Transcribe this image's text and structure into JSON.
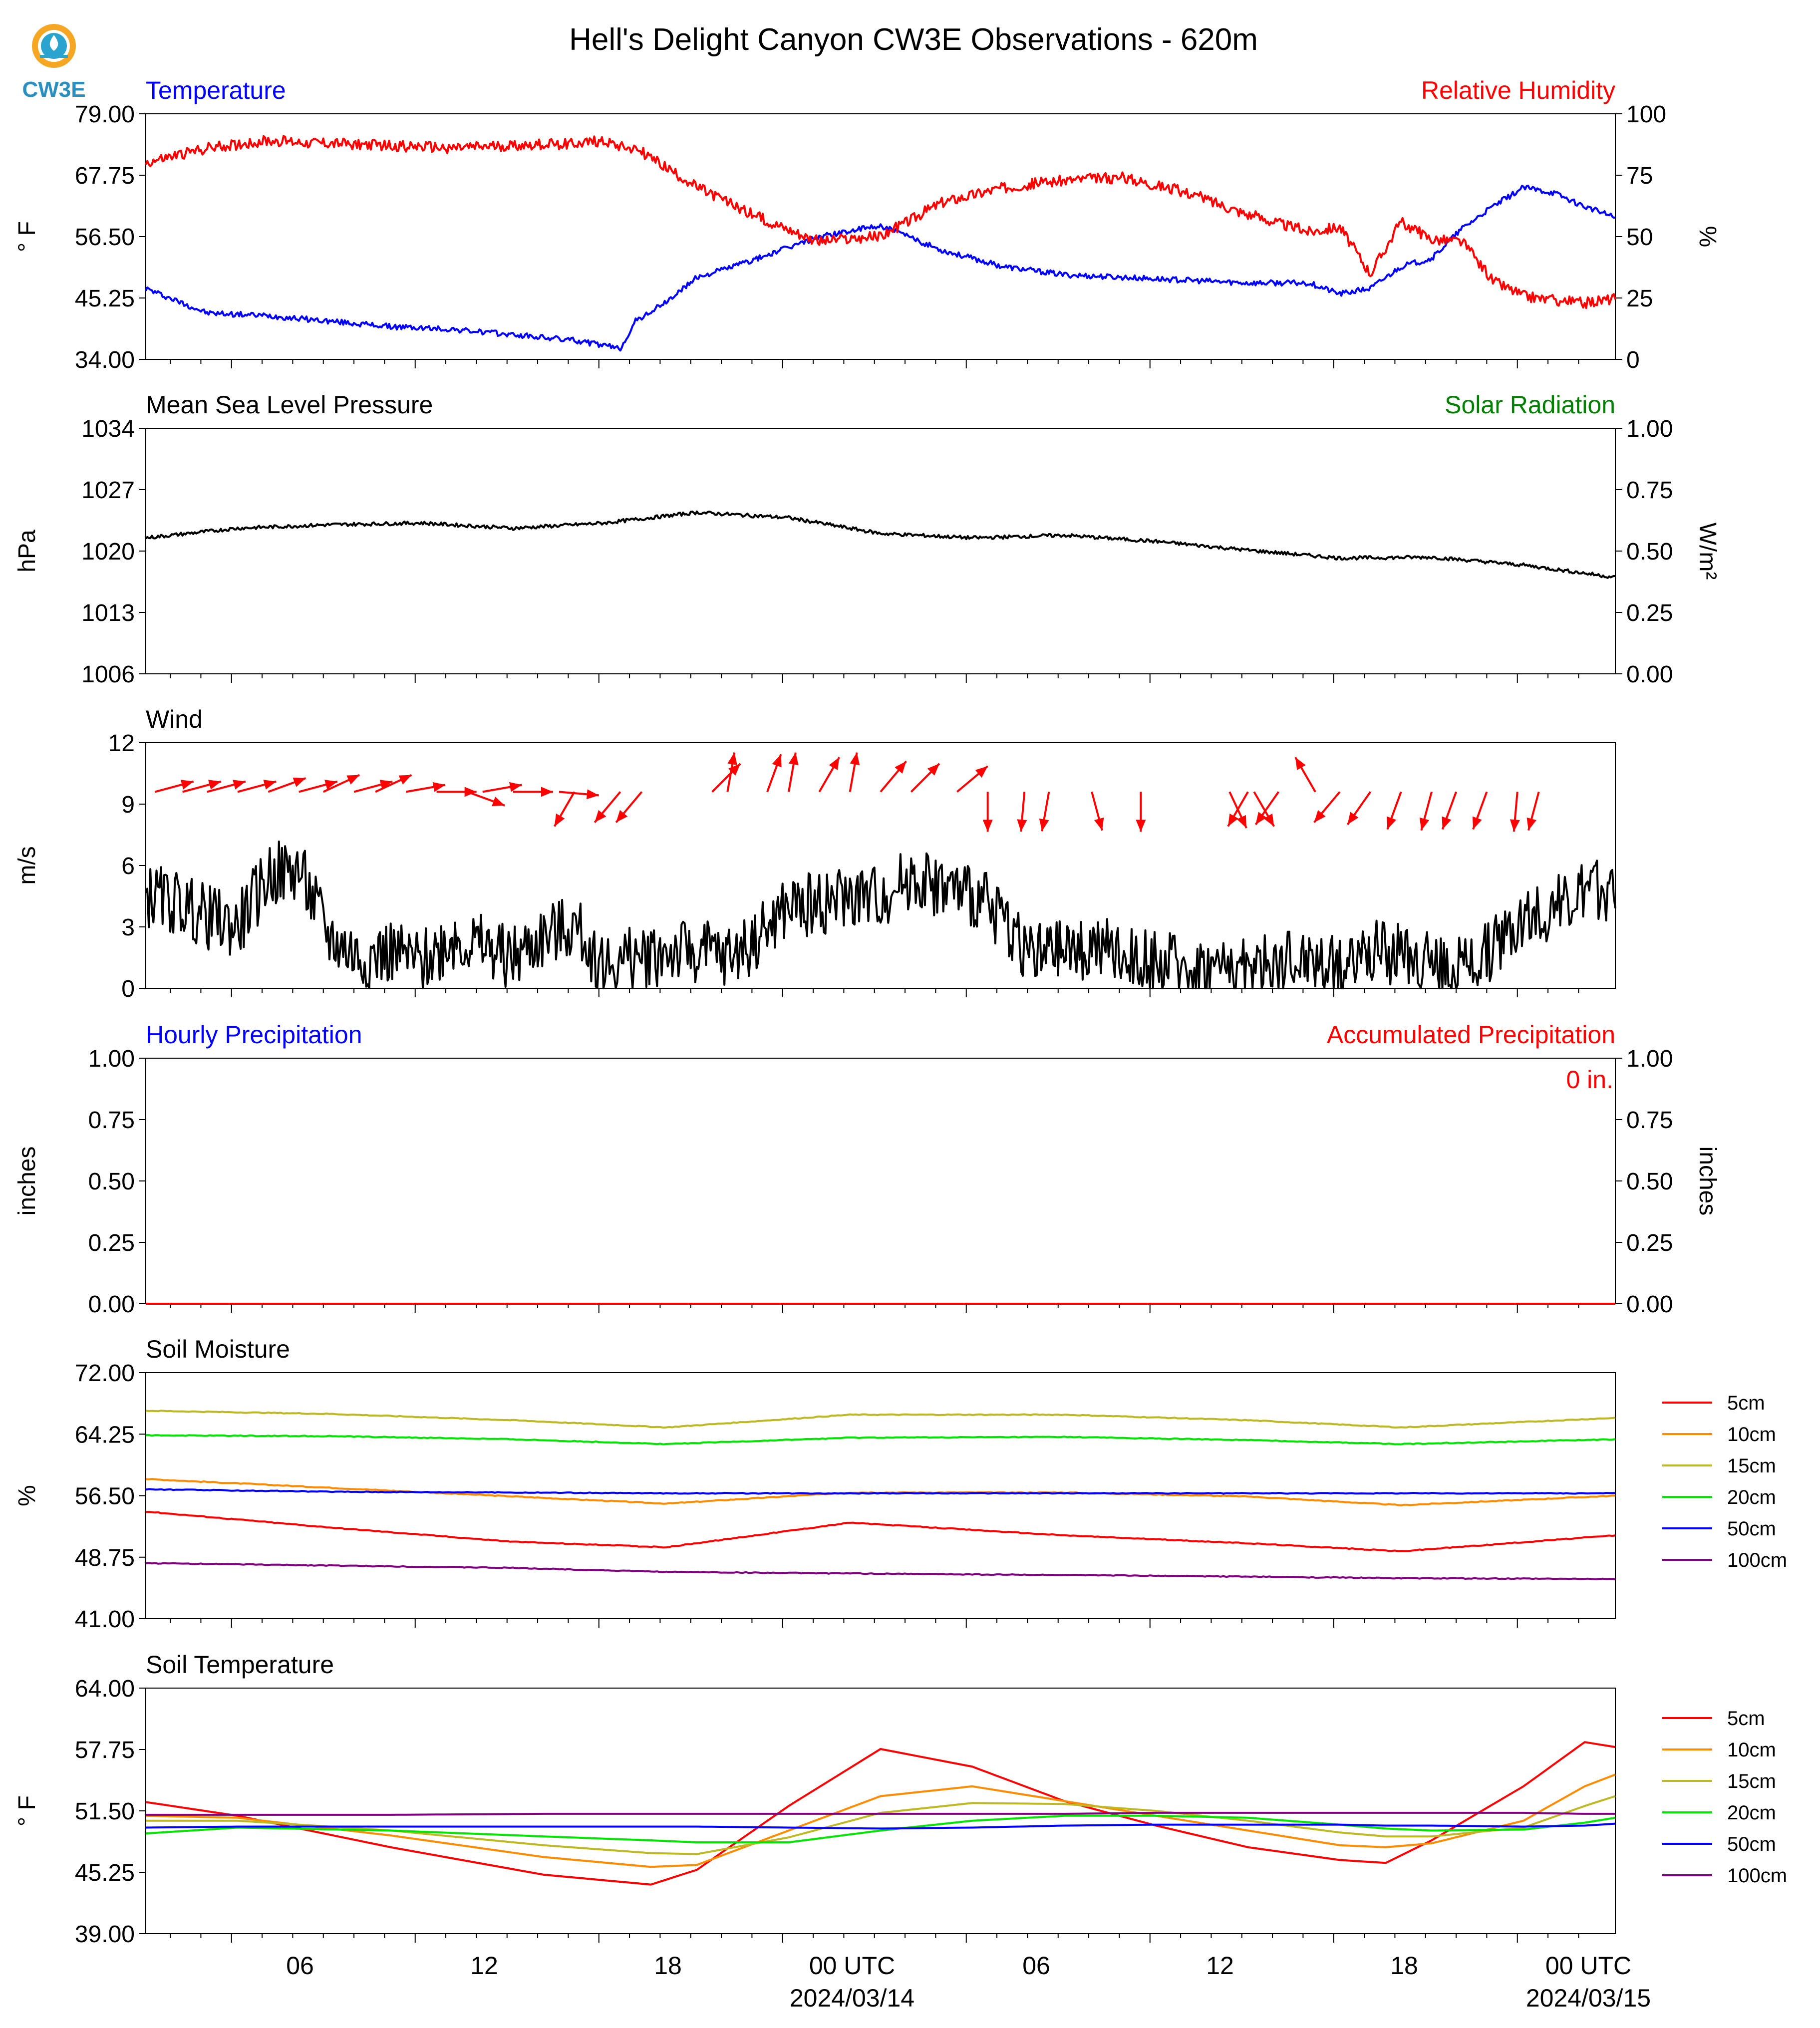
{
  "title": "Hell's Delight Canyon CW3E Observations - 620m",
  "logo": {
    "text": "CW3E",
    "colors": {
      "ring": "#f5a623",
      "inner": "#2aa4cf",
      "text": "#2a8fc0"
    }
  },
  "time_axis": {
    "ticks": [
      "06",
      "12",
      "18",
      "00 UTC",
      "06",
      "12",
      "18",
      "00 UTC"
    ],
    "dates": [
      "2024/03/14",
      "2024/03/15"
    ]
  },
  "chart_data": [
    {
      "type": "line",
      "title_left": "Temperature",
      "title_right": "Relative Humidity",
      "ylabel": "° F",
      "ylabel_right": "%",
      "ylim": [
        34,
        79
      ],
      "yticks": [
        "79.00",
        "67.75",
        "56.50",
        "45.25",
        "34.00"
      ],
      "ylim_right": [
        0,
        100
      ],
      "yticks_right": [
        "100",
        "75",
        "50",
        "25",
        "0"
      ],
      "x_hours": [
        0,
        2,
        4,
        6,
        8,
        10,
        12,
        14,
        15,
        15.5,
        16,
        17,
        18,
        20,
        22,
        24,
        26,
        28,
        30,
        32,
        34,
        36,
        38,
        39,
        40,
        41,
        42,
        43,
        44,
        45,
        46,
        47,
        48
      ],
      "series": [
        {
          "name": "Temperature",
          "color": "#0000ff",
          "values": [
            47,
            42.5,
            42,
            41,
            40,
            39.5,
            38.5,
            37.5,
            36.5,
            36,
            41,
            44.5,
            49,
            52.5,
            56.5,
            58.5,
            54,
            51,
            49.5,
            49,
            48.5,
            48,
            48,
            46,
            47,
            51,
            52.5,
            58,
            62,
            65.5,
            64.5,
            62,
            60
          ]
        },
        {
          "name": "Relative Humidity",
          "color": "#ff0000",
          "values": [
            80,
            86,
            89,
            88,
            87,
            86,
            87,
            88,
            89,
            87,
            86,
            78,
            70,
            58,
            48,
            50,
            64,
            70,
            73,
            74,
            68,
            59,
            52,
            54,
            35,
            56,
            49,
            48,
            32,
            26,
            24,
            23,
            25
          ]
        }
      ]
    },
    {
      "type": "line",
      "title_left": "Mean Sea Level Pressure",
      "title_right": "Solar Radiation",
      "ylabel": "hPa",
      "ylabel_right": "W/m²",
      "ylim": [
        1006,
        1034
      ],
      "yticks": [
        "1034",
        "1027",
        "1020",
        "1013",
        "1006"
      ],
      "ylim_right": [
        0,
        1
      ],
      "yticks_right": [
        "1.00",
        "0.75",
        "0.50",
        "0.25",
        "0.00"
      ],
      "x_hours": [
        0,
        3,
        6,
        9,
        12,
        15,
        18,
        21,
        24,
        27,
        30,
        33,
        36,
        39,
        42,
        45,
        48
      ],
      "series": [
        {
          "name": "Pressure",
          "color": "#000000",
          "values": [
            1021.5,
            1022.6,
            1023.0,
            1023.2,
            1022.6,
            1023.2,
            1024.4,
            1023.8,
            1022,
            1021.5,
            1021.8,
            1021.1,
            1020.1,
            1019.2,
            1019.3,
            1018.4,
            1017.0
          ]
        }
      ]
    },
    {
      "type": "line",
      "title_left": "Wind",
      "ylabel": "m/s",
      "ylim": [
        0,
        12
      ],
      "yticks": [
        "12",
        "9",
        "6",
        "3",
        "0"
      ],
      "x_hours": [
        0,
        1,
        2,
        3,
        4,
        5,
        6,
        7,
        8,
        9,
        10,
        11,
        12,
        13,
        14,
        15,
        16,
        17,
        18,
        19,
        20,
        21,
        22,
        23,
        24,
        25,
        26,
        27,
        28,
        29,
        30,
        31,
        32,
        33,
        34,
        35,
        36,
        37,
        38,
        39,
        40,
        41,
        42,
        43,
        44,
        45,
        46,
        47,
        48
      ],
      "series": [
        {
          "name": "Wind speed",
          "color": "#000000",
          "values": [
            4.5,
            4.2,
            3.5,
            3.0,
            5.5,
            5.8,
            2.5,
            1.5,
            1.8,
            1.2,
            2.5,
            2.0,
            1.5,
            2.5,
            3.0,
            1.0,
            1.5,
            1.8,
            1.8,
            1.5,
            2.5,
            4.0,
            4.2,
            4.5,
            4.5,
            5.5,
            5.0,
            4.5,
            3.5,
            1.5,
            1.8,
            2.0,
            1.5,
            1.2,
            1.0,
            1.0,
            1.0,
            1.2,
            1.5,
            1.0,
            2.0,
            1.5,
            1.2,
            1.0,
            2.0,
            3.5,
            4.0,
            4.5,
            5.0
          ]
        }
      ],
      "arrows": {
        "color": "#ff0000",
        "note": "wind direction arrows (hour, direction toward in degrees clockwise from north)",
        "items": [
          [
            0.3,
            75
          ],
          [
            1.2,
            75
          ],
          [
            2.0,
            75
          ],
          [
            3.0,
            75
          ],
          [
            4.0,
            70
          ],
          [
            5.0,
            75
          ],
          [
            5.8,
            65
          ],
          [
            6.8,
            75
          ],
          [
            7.5,
            65
          ],
          [
            8.5,
            80
          ],
          [
            9.5,
            90
          ],
          [
            10.5,
            110
          ],
          [
            11.0,
            80
          ],
          [
            12.0,
            90
          ],
          [
            13.5,
            95
          ],
          [
            14.0,
            210
          ],
          [
            15.5,
            220
          ],
          [
            16.2,
            220
          ],
          [
            18.5,
            45
          ],
          [
            19.0,
            10
          ],
          [
            20.3,
            20
          ],
          [
            21.0,
            10
          ],
          [
            22.0,
            30
          ],
          [
            23.0,
            10
          ],
          [
            24.0,
            40
          ],
          [
            25.0,
            45
          ],
          [
            26.5,
            50
          ],
          [
            27.5,
            180
          ],
          [
            28.7,
            185
          ],
          [
            29.5,
            190
          ],
          [
            30.9,
            165
          ],
          [
            32.5,
            180
          ],
          [
            35.4,
            155
          ],
          [
            36.0,
            210
          ],
          [
            36.2,
            150
          ],
          [
            37.0,
            215
          ],
          [
            38.2,
            330
          ],
          [
            39.0,
            220
          ],
          [
            40.0,
            215
          ],
          [
            41.0,
            200
          ],
          [
            42.0,
            195
          ],
          [
            42.8,
            200
          ],
          [
            43.8,
            200
          ],
          [
            44.8,
            185
          ],
          [
            45.5,
            195
          ]
        ]
      }
    },
    {
      "type": "line",
      "title_left": "Hourly Precipitation",
      "title_right": "Accumulated Precipitation",
      "ylabel": "inches",
      "ylabel_right": "inches",
      "ylim": [
        0,
        1
      ],
      "yticks": [
        "1.00",
        "0.75",
        "0.50",
        "0.25",
        "0.00"
      ],
      "yticks_right": [
        "1.00",
        "0.75",
        "0.50",
        "0.25",
        "0.00"
      ],
      "annotation": "0 in.",
      "x_hours": [
        0,
        48
      ],
      "series": [
        {
          "name": "Hourly Precipitation",
          "color": "#0000ff",
          "values": [
            0,
            0
          ]
        },
        {
          "name": "Accumulated Precipitation",
          "color": "#ff0000",
          "values": [
            0,
            0
          ]
        }
      ]
    },
    {
      "type": "line",
      "title_left": "Soil Moisture",
      "ylabel": "%",
      "ylim": [
        41,
        72
      ],
      "yticks": [
        "72.00",
        "64.25",
        "56.50",
        "48.75",
        "41.00"
      ],
      "legend": [
        "5cm",
        "10cm",
        "15cm",
        "20cm",
        "50cm",
        "100cm"
      ],
      "x_hours": [
        0,
        6,
        12,
        17,
        23,
        30,
        36,
        41,
        48
      ],
      "series": [
        {
          "name": "5cm",
          "color": "#ff0000",
          "values": [
            54.5,
            52.5,
            50.7,
            50.0,
            53.1,
            51.5,
            50.5,
            49.5,
            51.5
          ]
        },
        {
          "name": "10cm",
          "color": "#ff8c00",
          "values": [
            58.6,
            57.5,
            56.4,
            55.5,
            56.9,
            56.9,
            56.4,
            55.3,
            56.5
          ]
        },
        {
          "name": "15cm",
          "color": "#bdb824",
          "values": [
            67.2,
            66.8,
            66.0,
            65.1,
            66.7,
            66.7,
            66.0,
            65.1,
            66.3
          ]
        },
        {
          "name": "20cm",
          "color": "#00e600",
          "values": [
            64.1,
            64.0,
            63.6,
            63.0,
            63.8,
            63.9,
            63.5,
            63.0,
            63.6
          ]
        },
        {
          "name": "50cm",
          "color": "#0000ff",
          "values": [
            57.3,
            57.0,
            56.9,
            56.8,
            56.8,
            56.8,
            56.8,
            56.8,
            56.8
          ]
        },
        {
          "name": "100cm",
          "color": "#800080",
          "values": [
            48.0,
            47.7,
            47.4,
            46.9,
            46.7,
            46.5,
            46.3,
            46.1,
            46.0
          ]
        }
      ]
    },
    {
      "type": "line",
      "title_left": "Soil Temperature",
      "ylabel": "° F",
      "ylim": [
        39,
        64
      ],
      "yticks": [
        "64.00",
        "57.75",
        "51.50",
        "45.25",
        "39.00"
      ],
      "legend": [
        "5cm",
        "10cm",
        "15cm",
        "20cm",
        "50cm",
        "100cm"
      ],
      "x_hours": [
        0,
        3,
        8,
        13,
        16.5,
        18,
        21,
        24,
        27,
        30,
        33,
        36,
        39,
        40.5,
        42,
        45,
        47,
        48
      ],
      "series": [
        {
          "name": "5cm",
          "color": "#ff0000",
          "values": [
            52.4,
            51.0,
            47.8,
            45.0,
            44.0,
            45.5,
            52.0,
            57.8,
            56.0,
            52.5,
            50.0,
            47.8,
            46.5,
            46.2,
            48.5,
            54.0,
            58.5,
            58.0
          ]
        },
        {
          "name": "10cm",
          "color": "#ff8c00",
          "values": [
            51.0,
            50.8,
            49.0,
            46.8,
            45.8,
            46.0,
            49.5,
            53.0,
            54.0,
            52.5,
            51.0,
            49.5,
            48.0,
            47.8,
            48.2,
            50.5,
            54.0,
            55.2
          ]
        },
        {
          "name": "15cm",
          "color": "#bdb824",
          "values": [
            50.5,
            50.5,
            49.5,
            48.0,
            47.2,
            47.1,
            48.8,
            51.3,
            52.3,
            52.2,
            51.5,
            50.5,
            49.3,
            48.9,
            48.9,
            49.8,
            52.0,
            53.0
          ]
        },
        {
          "name": "20cm",
          "color": "#00e600",
          "values": [
            49.2,
            49.8,
            49.5,
            48.9,
            48.5,
            48.3,
            48.3,
            49.5,
            50.5,
            51.0,
            51.0,
            50.8,
            50.1,
            49.7,
            49.5,
            49.6,
            50.3,
            50.8
          ]
        },
        {
          "name": "50cm",
          "color": "#0000ff",
          "values": [
            49.8,
            49.9,
            49.9,
            49.9,
            49.9,
            49.9,
            49.8,
            49.7,
            49.8,
            50.0,
            50.1,
            50.1,
            50.1,
            50.0,
            50.0,
            49.9,
            50.0,
            50.2
          ]
        },
        {
          "name": "100cm",
          "color": "#800080",
          "values": [
            51.1,
            51.1,
            51.1,
            51.2,
            51.2,
            51.2,
            51.2,
            51.2,
            51.2,
            51.2,
            51.3,
            51.3,
            51.3,
            51.3,
            51.3,
            51.3,
            51.2,
            51.2
          ]
        }
      ]
    }
  ]
}
